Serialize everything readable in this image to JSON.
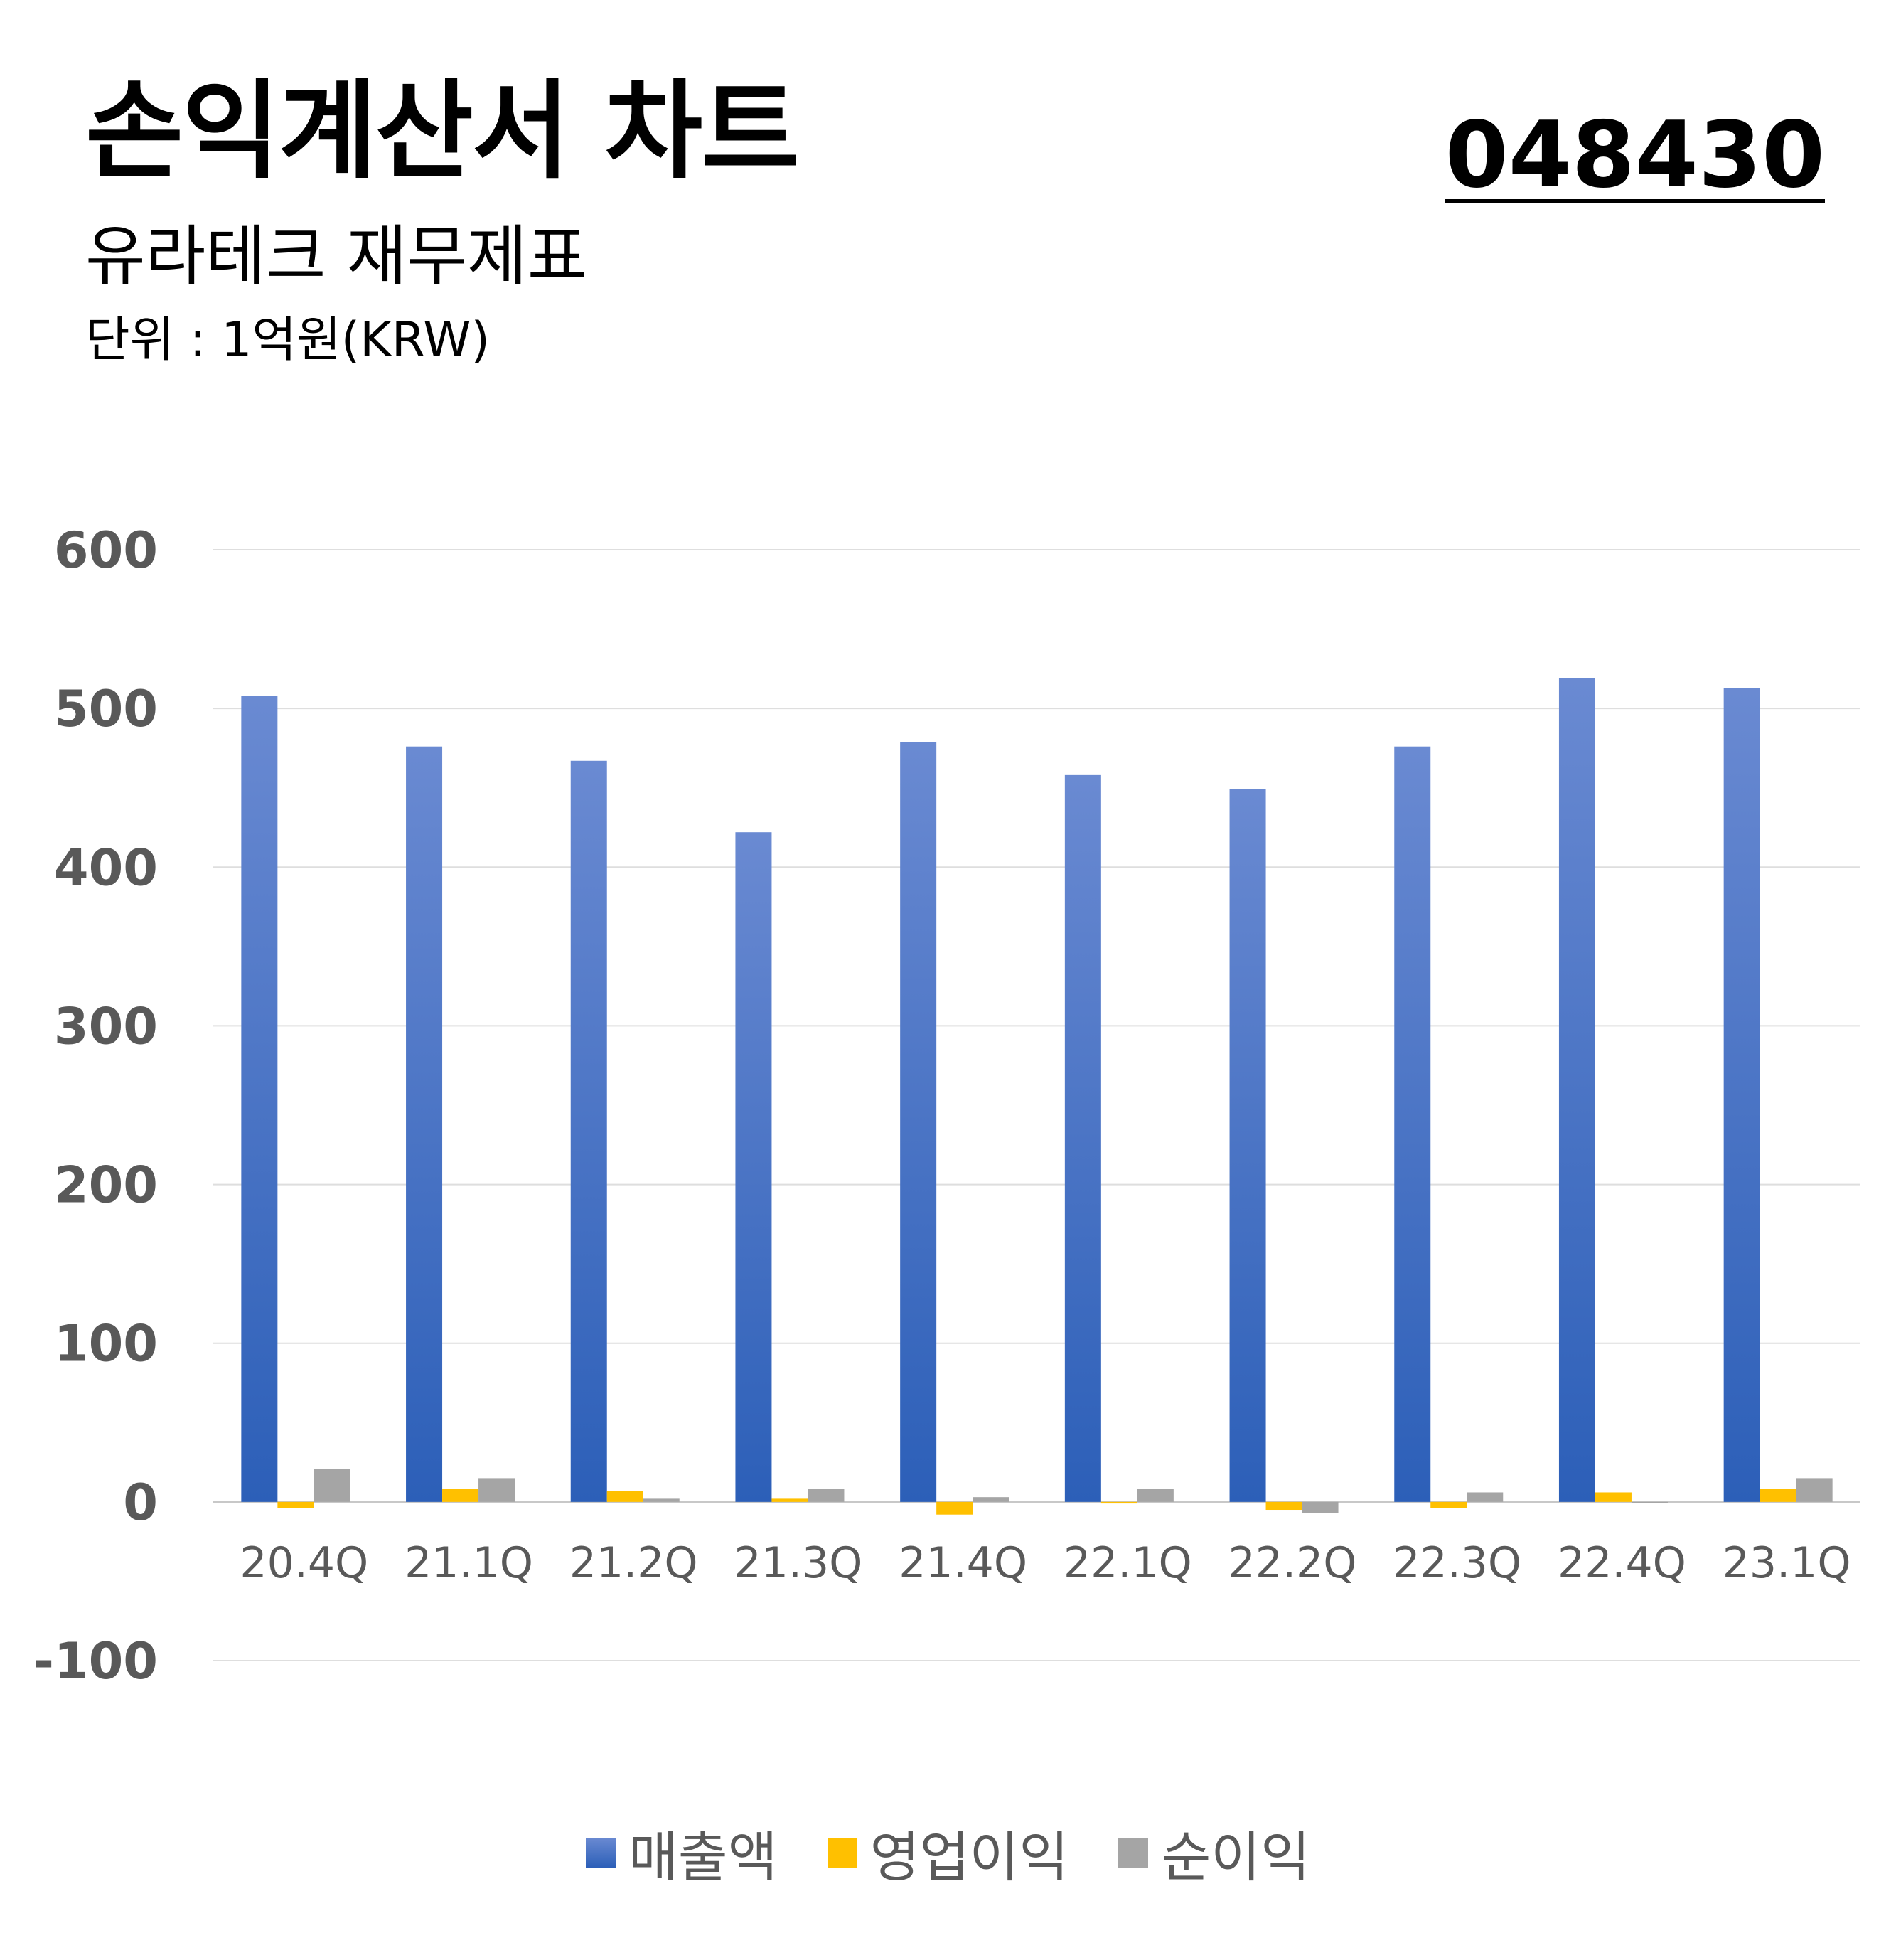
{
  "header": {
    "title": "손익계산서 차트",
    "subtitle": "유라테크 재무제표",
    "unit": "단위 : 1억원(KRW)",
    "code": "048430"
  },
  "chart_data": {
    "type": "bar",
    "title": "손익계산서 차트",
    "subtitle": "유라테크 재무제표",
    "ylabel": "",
    "xlabel": "",
    "ylim": [
      -100,
      600
    ],
    "yticks": [
      600,
      500,
      400,
      300,
      200,
      100,
      0,
      -100
    ],
    "grid": true,
    "legend_position": "bottom",
    "categories": [
      "20.4Q",
      "21.1Q",
      "21.2Q",
      "21.3Q",
      "21.4Q",
      "22.1Q",
      "22.2Q",
      "22.3Q",
      "22.4Q",
      "23.1Q"
    ],
    "series": [
      {
        "name": "매출액",
        "color": "#4472C4",
        "values": [
          508,
          476,
          467,
          422,
          479,
          458,
          449,
          476,
          519,
          513
        ]
      },
      {
        "name": "영업이익",
        "color": "#FFC000",
        "values": [
          -4,
          8,
          7,
          2,
          -8,
          -1,
          -5,
          -4,
          6,
          8
        ]
      },
      {
        "name": "순이익",
        "color": "#A5A5A5",
        "values": [
          21,
          15,
          2,
          8,
          3,
          8,
          -7,
          6,
          0,
          15
        ]
      }
    ]
  }
}
